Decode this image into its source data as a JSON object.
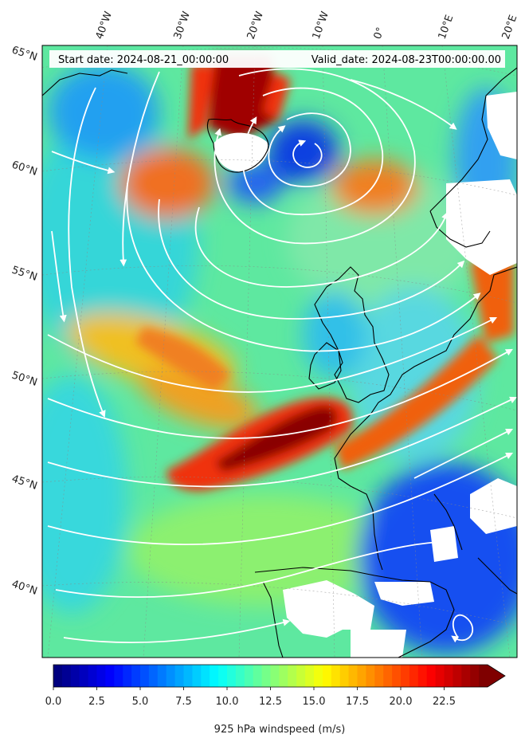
{
  "map": {
    "start_label": "Start date: 2024-08-21_00:00:00",
    "valid_label": "Valid_date: 2024-08-23T00:00:00.00",
    "lon_labels": [
      "40°W",
      "30°W",
      "20°W",
      "10°W",
      "0°",
      "10°E",
      "20°E"
    ],
    "lat_labels": [
      "65°N",
      "60°N",
      "55°N",
      "50°N",
      "45°N",
      "40°N"
    ],
    "field": "925 hPa windspeed",
    "units": "m/s",
    "colormap": "jet",
    "land_outline_color": "#000000",
    "streamline_color": "#ffffff",
    "masked_color": "#ffffff"
  },
  "colorbar": {
    "label": "925 hPa windspeed (m/s)",
    "min": 0,
    "max": 25,
    "extend": "max",
    "ticks": [
      "0.0",
      "2.5",
      "5.0",
      "7.5",
      "10.0",
      "12.5",
      "15.0",
      "17.5",
      "20.0",
      "22.5"
    ],
    "colors": [
      "#00007f",
      "#0000ff",
      "#007fff",
      "#00ffff",
      "#7fff7f",
      "#ffff00",
      "#ff7f00",
      "#ff0000",
      "#7f0000"
    ]
  }
}
